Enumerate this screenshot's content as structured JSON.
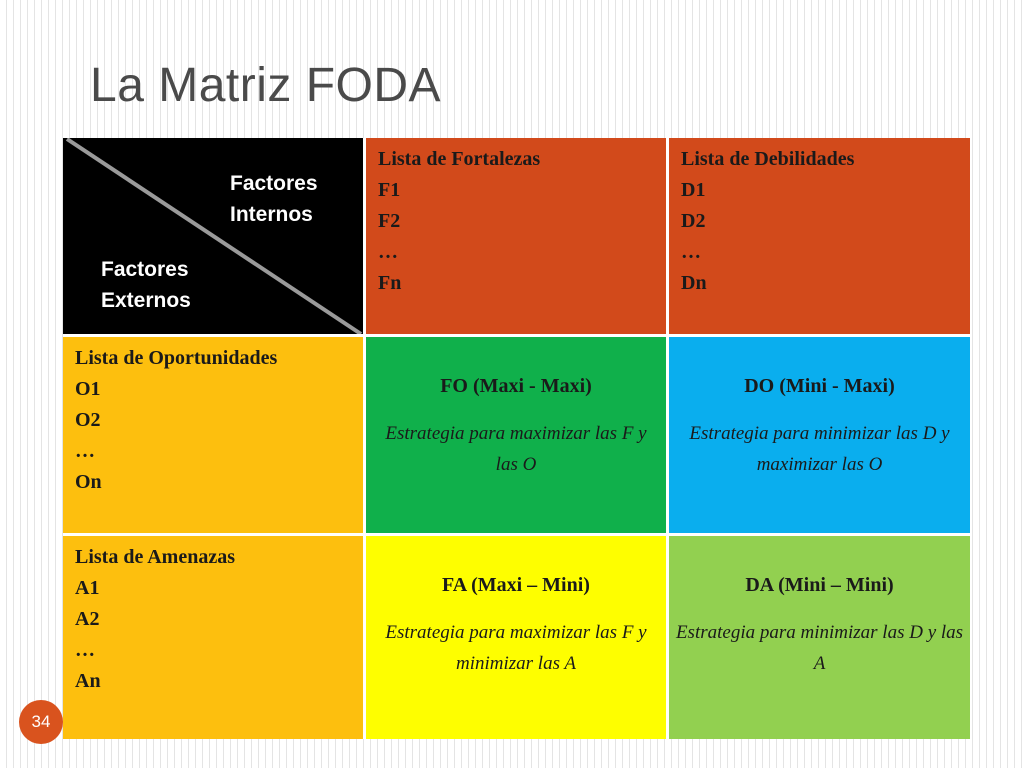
{
  "slide": {
    "title": "La Matriz FODA",
    "page_number": "34"
  },
  "matrix": {
    "corner": {
      "internal_label_1": "Factores",
      "internal_label_2": "Internos",
      "external_label_1": "Factores",
      "external_label_2": "Externos"
    },
    "strengths": {
      "heading": "Lista de Fortalezas",
      "items": [
        "F1",
        "F2",
        "…",
        "Fn"
      ]
    },
    "weaknesses": {
      "heading": "Lista de Debilidades",
      "items": [
        "D1",
        "D2",
        "…",
        "Dn"
      ]
    },
    "opportunities": {
      "heading": "Lista de Oportunidades",
      "items": [
        "O1",
        "O2",
        "…",
        "On"
      ]
    },
    "threats": {
      "heading": "Lista de Amenazas",
      "items": [
        "A1",
        "A2",
        "…",
        "An"
      ]
    },
    "fo": {
      "heading": "FO (Maxi - Maxi)",
      "description": "Estrategia para maximizar las F y las O"
    },
    "do": {
      "heading": "DO (Mini - Maxi)",
      "description": "Estrategia para minimizar las D y maximizar las O"
    },
    "fa": {
      "heading": "FA (Maxi – Mini)",
      "description": "Estrategia para maximizar las F y minimizar las A"
    },
    "da": {
      "heading": "DA (Mini – Mini)",
      "description": "Estrategia para minimizar las D y las A"
    }
  },
  "colors": {
    "strengths_weaknesses": "#d24a1b",
    "opportunities_threats": "#fdbf0e",
    "fo": "#10b04b",
    "do": "#0aaeee",
    "fa": "#fefe00",
    "da": "#92d050",
    "corner": "#000000",
    "page_badge": "#d9531e"
  }
}
